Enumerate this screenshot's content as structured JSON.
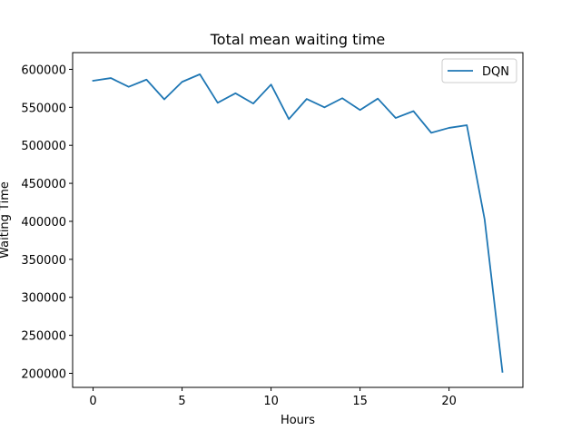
{
  "chart_data": {
    "type": "line",
    "title": "Total mean waiting time",
    "xlabel": "Hours",
    "ylabel": "Waiting Time",
    "xlim": [
      -1.15,
      24.15
    ],
    "ylim": [
      181500,
      622000
    ],
    "xticks": [
      0,
      5,
      10,
      15,
      20
    ],
    "xtick_labels": [
      "0",
      "5",
      "10",
      "15",
      "20"
    ],
    "yticks": [
      200000,
      250000,
      300000,
      350000,
      400000,
      450000,
      500000,
      550000,
      600000
    ],
    "ytick_labels": [
      "200000",
      "250000",
      "300000",
      "350000",
      "400000",
      "450000",
      "500000",
      "550000",
      "600000"
    ],
    "grid": false,
    "legend_position": "top-right",
    "series": [
      {
        "name": "DQN",
        "color": "#1f77b4",
        "x": [
          0,
          1,
          2,
          3,
          4,
          5,
          6,
          7,
          8,
          9,
          10,
          11,
          12,
          13,
          14,
          15,
          16,
          17,
          18,
          19,
          20,
          21,
          22,
          23
        ],
        "y": [
          585000,
          588500,
          577000,
          586500,
          560500,
          583500,
          593500,
          556000,
          568500,
          555000,
          580000,
          534500,
          561000,
          550000,
          562000,
          546500,
          561500,
          536000,
          545000,
          516500,
          523000,
          526500,
          402500,
          202000
        ]
      }
    ]
  }
}
